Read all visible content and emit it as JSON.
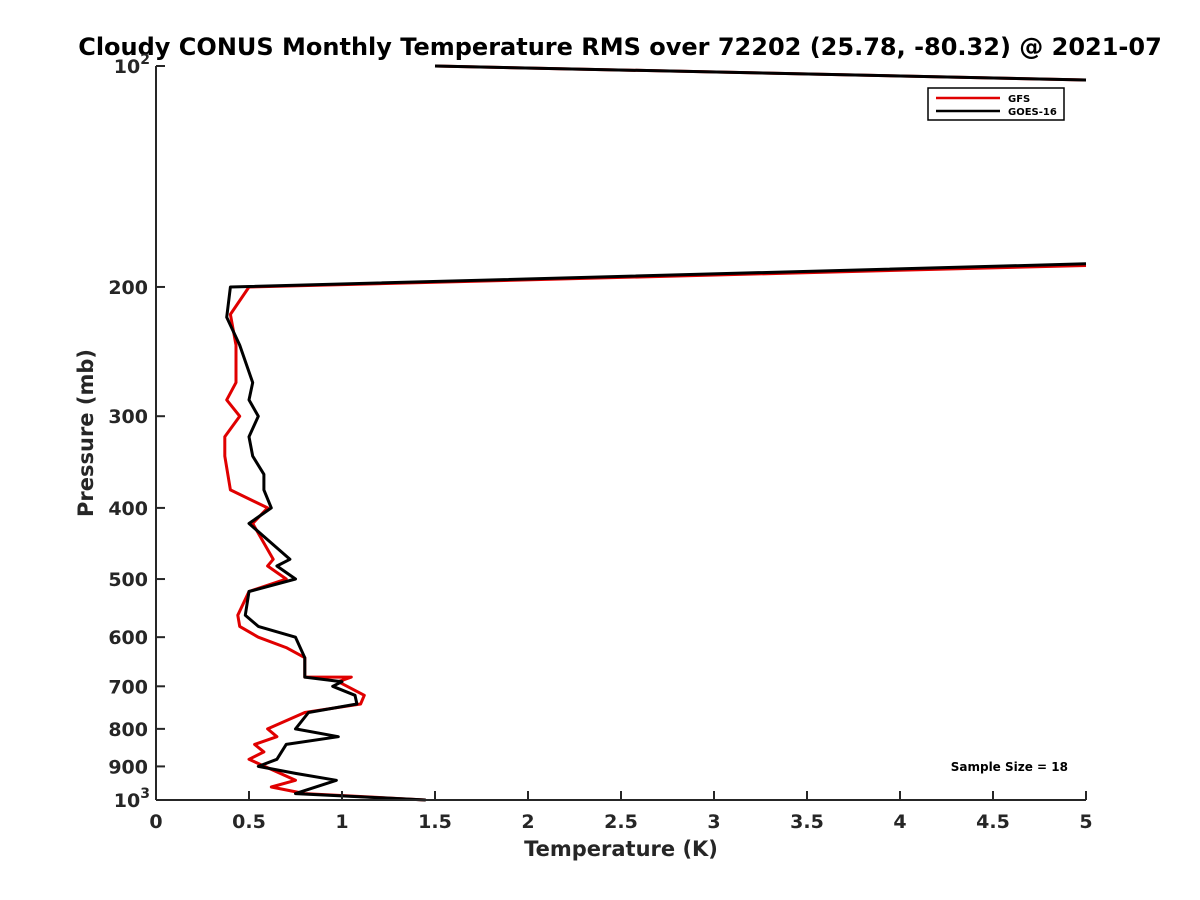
{
  "chart_data": {
    "type": "line",
    "title": "Cloudy CONUS Monthly Temperature RMS over 72202 (25.78, -80.32) @ 2021-07",
    "xlabel": "Temperature (K)",
    "ylabel": "Pressure (mb)",
    "xlim": [
      0,
      5
    ],
    "ylim": [
      100,
      1000
    ],
    "yscale": "log",
    "yreversed": true,
    "grid": false,
    "x_ticks": [
      "0",
      "0.5",
      "1",
      "1.5",
      "2",
      "2.5",
      "3",
      "3.5",
      "4",
      "4.5",
      "5"
    ],
    "y_ticks": [
      {
        "value": 100,
        "base": "10",
        "exp": "2"
      },
      {
        "value": 200,
        "label": "200"
      },
      {
        "value": 300,
        "label": "300"
      },
      {
        "value": 400,
        "label": "400"
      },
      {
        "value": 500,
        "label": "500"
      },
      {
        "value": 600,
        "label": "600"
      },
      {
        "value": 700,
        "label": "700"
      },
      {
        "value": 800,
        "label": "800"
      },
      {
        "value": 900,
        "label": "900"
      },
      {
        "value": 1000,
        "base": "10",
        "exp": "3"
      }
    ],
    "legend_position": "top-right",
    "annotation": "Sample Size = 18",
    "series": [
      {
        "name": "GFS",
        "color": "#e00000",
        "x": [
          5.0,
          0.5,
          0.4,
          0.43,
          0.43,
          0.38,
          0.45,
          0.37,
          0.37,
          0.4,
          0.6,
          0.52,
          0.63,
          0.6,
          0.7,
          0.5,
          0.44,
          0.45,
          0.55,
          0.7,
          0.8,
          0.8,
          1.05,
          0.98,
          1.12,
          1.1,
          0.8,
          0.6,
          0.65,
          0.53,
          0.58,
          0.5,
          0.75,
          0.62,
          0.8,
          1.45
        ],
        "y": [
          187,
          200,
          218,
          240,
          270,
          285,
          300,
          320,
          340,
          378,
          400,
          420,
          470,
          480,
          500,
          520,
          560,
          580,
          600,
          620,
          640,
          680,
          680,
          690,
          720,
          740,
          760,
          800,
          820,
          840,
          860,
          880,
          940,
          960,
          980,
          1000
        ]
      },
      {
        "name": "GOES-16",
        "color": "#000000",
        "x": [
          5.0,
          0.4,
          0.38,
          0.45,
          0.52,
          0.5,
          0.55,
          0.5,
          0.52,
          0.58,
          0.58,
          0.62,
          0.5,
          0.72,
          0.65,
          0.75,
          0.5,
          0.48,
          0.55,
          0.75,
          0.8,
          0.8,
          1.0,
          0.95,
          1.07,
          1.08,
          0.82,
          0.75,
          0.98,
          0.7,
          0.65,
          0.55,
          0.75,
          0.97,
          0.75,
          1.45
        ],
        "y": [
          186,
          200,
          220,
          240,
          270,
          285,
          300,
          320,
          340,
          360,
          378,
          400,
          420,
          470,
          480,
          500,
          520,
          560,
          580,
          600,
          640,
          680,
          690,
          700,
          720,
          740,
          760,
          800,
          820,
          840,
          880,
          900,
          920,
          940,
          980,
          1000
        ]
      }
    ],
    "upper_segments": [
      {
        "series": "GFS",
        "color": "#e00000",
        "x": [
          1.5,
          5.0
        ],
        "y": [
          100,
          104.5
        ]
      },
      {
        "series": "GOES-16",
        "color": "#000000",
        "x": [
          1.5,
          5.0
        ],
        "y": [
          100,
          104.5
        ]
      }
    ]
  }
}
